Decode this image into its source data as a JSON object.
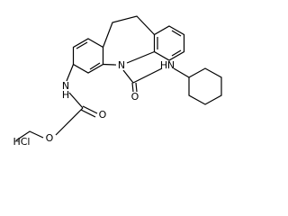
{
  "molecule": {
    "ring_nitrogen": "N",
    "ketone_oxygen": "O",
    "amine": {
      "h": "H",
      "n": "N"
    },
    "carbamate_nitrogen": {
      "n": "N",
      "h": "H"
    },
    "carbonyl_oxygen": "O",
    "ester_oxygen": "O",
    "salt": "HCl"
  }
}
